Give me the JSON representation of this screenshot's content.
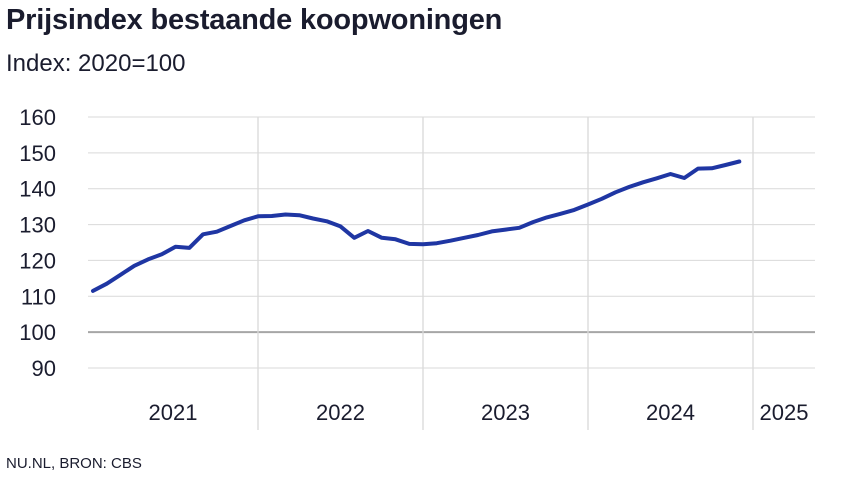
{
  "header": {
    "title": "Prijsindex bestaande koopwoningen",
    "subtitle": "Index: 2020=100"
  },
  "footer": {
    "source": "NU.NL, BRON: CBS"
  },
  "colors": {
    "line": "#1f36a3",
    "grid": "#d9d9d9",
    "baseline": "#a6a6a6",
    "text": "#1a1c2e"
  },
  "chart_data": {
    "type": "line",
    "title": "Prijsindex bestaande koopwoningen",
    "subtitle": "Index: 2020=100",
    "ylim": [
      85,
      160
    ],
    "y_ticks": [
      90,
      100,
      110,
      120,
      130,
      140,
      150,
      160
    ],
    "baseline": 100,
    "grid": true,
    "x_labels": [
      "2021",
      "2022",
      "2023",
      "2024",
      "2025"
    ],
    "x_start": "2021-01",
    "x_end": "2025-05",
    "series": [
      {
        "x": [
          "2021-01",
          "2021-02",
          "2021-03",
          "2021-04",
          "2021-05",
          "2021-06",
          "2021-07",
          "2021-08",
          "2021-09",
          "2021-10",
          "2021-11",
          "2021-12",
          "2022-01",
          "2022-02",
          "2022-03",
          "2022-04",
          "2022-05",
          "2022-06",
          "2022-07",
          "2022-08",
          "2022-09",
          "2022-10",
          "2022-11",
          "2022-12",
          "2023-01",
          "2023-02",
          "2023-03",
          "2023-04",
          "2023-05",
          "2023-06",
          "2023-07",
          "2023-08",
          "2023-09",
          "2023-10",
          "2023-11",
          "2023-12",
          "2024-01",
          "2024-02",
          "2024-03",
          "2024-04",
          "2024-05",
          "2024-06",
          "2024-07",
          "2024-08",
          "2024-09",
          "2024-10",
          "2024-11",
          "2024-12",
          "2025-01",
          "2025-02",
          "2025-03",
          "2025-04",
          "2025-05"
        ],
        "values": [
          111.5,
          113.5,
          116.0,
          118.5,
          120.3,
          121.7,
          123.8,
          123.5,
          127.3,
          128.0,
          129.6,
          131.2,
          132.3,
          132.4,
          132.8,
          132.6,
          131.7,
          130.9,
          129.5,
          126.3,
          128.2,
          126.3,
          125.9,
          124.6,
          124.5,
          124.8,
          125.5,
          126.3,
          127.1,
          128.1,
          128.6,
          129.1,
          130.7,
          132.0,
          133.0,
          134.1,
          135.6,
          137.2,
          139.0,
          140.5,
          141.8,
          142.9,
          144.1,
          143.0,
          145.6,
          145.7,
          146.6,
          147.6,
          null,
          null,
          null,
          null,
          null
        ]
      }
    ]
  }
}
